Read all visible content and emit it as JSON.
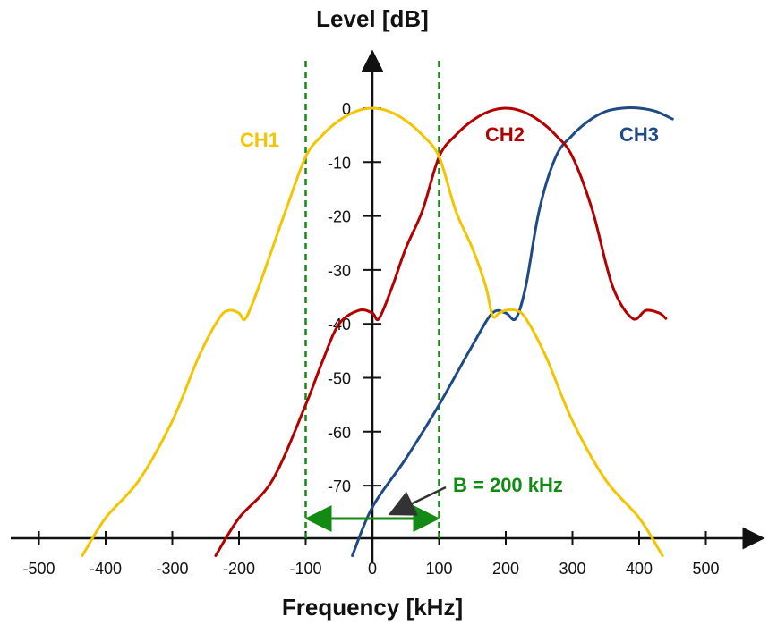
{
  "chart_data": {
    "type": "line",
    "xlabel": "Frequency [kHz]",
    "ylabel": "Level [dB]",
    "xlim": [
      -540,
      590
    ],
    "ylim": [
      -83,
      14
    ],
    "x_ticks": [
      -500,
      -400,
      -300,
      -200,
      -100,
      0,
      100,
      200,
      300,
      400,
      500
    ],
    "y_ticks": [
      0,
      -10,
      -20,
      -30,
      -40,
      -50,
      -60,
      -70
    ],
    "grid": false,
    "series": [
      {
        "name": "CH1",
        "color": "#f2c500",
        "x": [
          -435,
          -400,
          -350,
          -300,
          -260,
          -230,
          -215,
          -200,
          -190,
          -170,
          -150,
          -130,
          -100,
          -75,
          -50,
          -25,
          0,
          25,
          50,
          75,
          100,
          125,
          150,
          170,
          180,
          190,
          200,
          215,
          230,
          260,
          300,
          350,
          400,
          435
        ],
        "y": [
          -83,
          -76,
          -69,
          -58,
          -46,
          -39,
          -37.5,
          -38,
          -39,
          -33,
          -26,
          -19,
          -9,
          -5,
          -2.3,
          -0.6,
          0,
          -0.6,
          -2.3,
          -5,
          -9,
          -19,
          -26,
          -33,
          -38.5,
          -38,
          -37.5,
          -37.5,
          -39,
          -46,
          -58,
          -69,
          -76,
          -83
        ]
      },
      {
        "name": "CH2",
        "color": "#b30000",
        "x": [
          -235,
          -200,
          -150,
          -100,
          -75,
          -50,
          -20,
          0,
          10,
          30,
          50,
          75,
          100,
          125,
          150,
          175,
          200,
          225,
          250,
          275,
          300,
          330,
          360,
          390,
          410,
          430,
          440
        ],
        "y": [
          -83,
          -76,
          -69,
          -55,
          -47,
          -40,
          -37.5,
          -38,
          -39,
          -33,
          -26,
          -19,
          -9,
          -5,
          -2.3,
          -0.6,
          0,
          -0.6,
          -2.3,
          -5,
          -9,
          -19,
          -33,
          -39,
          -37.5,
          -38,
          -39
        ]
      },
      {
        "name": "CH3",
        "color": "#1f4a84",
        "x": [
          -30,
          0,
          50,
          100,
          150,
          180,
          200,
          215,
          230,
          250,
          275,
          300,
          325,
          350,
          375,
          400,
          425,
          450
        ],
        "y": [
          -83,
          -74,
          -65,
          -55,
          -44,
          -38,
          -38,
          -39,
          -33,
          -19,
          -9,
          -5,
          -2.3,
          -0.6,
          0,
          0,
          -0.6,
          -2
        ]
      }
    ],
    "annotations": {
      "bandwidth_label": "B = 200 kHz",
      "bandwidth_color": "#138a13",
      "bandwidth_lines_x": [
        -100,
        100
      ],
      "bandwidth_arrow_y": -78,
      "pointer_tip": [
        20,
        -75
      ],
      "pointer_tail": [
        110,
        -71
      ],
      "label_anchor": [
        120,
        -70
      ]
    }
  }
}
